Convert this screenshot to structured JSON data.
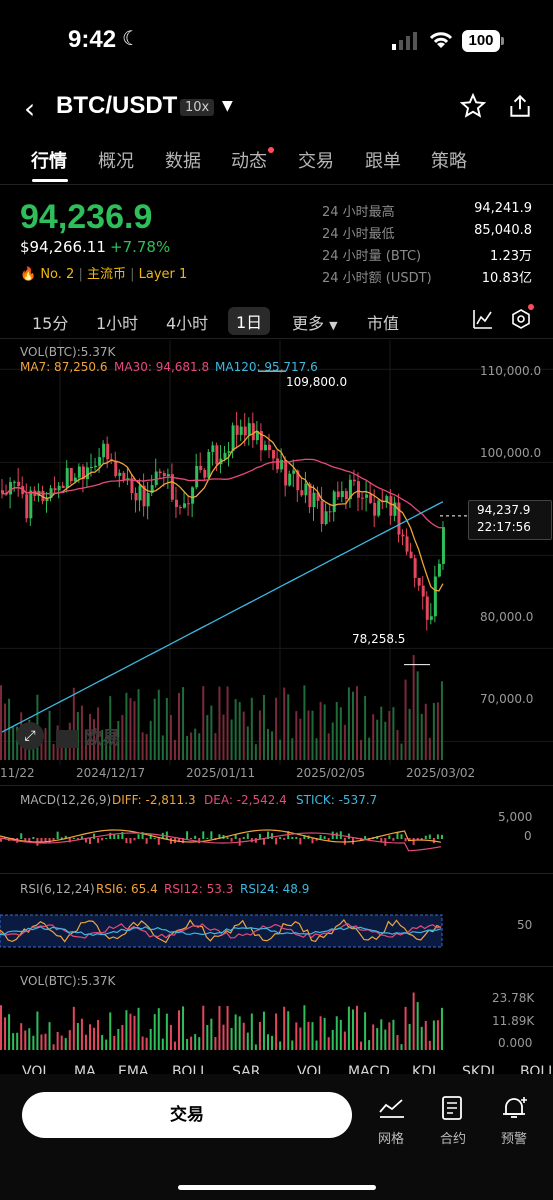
{
  "status": {
    "time": "9:42",
    "battery": "100"
  },
  "header": {
    "pair": "BTC/USDT",
    "leverage": "10x"
  },
  "tabs": [
    "行情",
    "概况",
    "数据",
    "动态",
    "交易",
    "跟单",
    "策略"
  ],
  "ticker": {
    "price": "94,236.9",
    "usd_price": "$94,266.11",
    "change": "+7.78%",
    "rank": "No. 2",
    "tag1": "主流币",
    "tag2": "Layer 1",
    "stats": [
      {
        "label": "24 小时最高",
        "value": "94,241.9"
      },
      {
        "label": "24 小时最低",
        "value": "85,040.8"
      },
      {
        "label": "24 小时量 (BTC)",
        "value": "1.23万"
      },
      {
        "label": "24 小时额 (USDT)",
        "value": "10.83亿"
      }
    ]
  },
  "timeframes": [
    "15分",
    "1小时",
    "4小时",
    "1日",
    "更多",
    "市值"
  ],
  "selected_timeframe": "1日",
  "main_chart": {
    "vol_label": "VOL(BTC):5.37K",
    "ma7": "MA7: 87,250.6",
    "ma30": "MA30: 94,681.8",
    "ma120": "MA120: 95,717.6",
    "y_ticks": [
      "110,000.0",
      "100,000.0",
      "80,000.0",
      "70,000.0"
    ],
    "high_label": "109,800.0",
    "low_label": "78,258.5",
    "current_price": "94,237.9",
    "countdown": "22:17:56",
    "x_labels": [
      "11/22",
      "2024/12/17",
      "2025/01/11",
      "2025/02/05",
      "2025/03/02"
    ],
    "watermark": "欧易"
  },
  "macd": {
    "title": "MACD(12,26,9)",
    "diff": "DIFF: -2,811.3",
    "dea": "DEA: -2,542.4",
    "stick": "STICK: -537.7",
    "ticks": [
      "5,000",
      "0"
    ]
  },
  "rsi": {
    "title": "RSI(6,12,24)",
    "rsi6": "RSI6: 65.4",
    "rsi12": "RSI12: 53.3",
    "rsi24": "RSI24: 48.9",
    "tick": "50"
  },
  "vol": {
    "title": "VOL(BTC):5.37K",
    "ticks": [
      "23.78K",
      "11.89K",
      "0.000"
    ]
  },
  "indicator_tabs": [
    "VOL",
    "MA",
    "EMA",
    "BOLL",
    "SAR",
    "VOL",
    "MACD",
    "KDJ",
    "SKDJ",
    "BOLL"
  ],
  "bottom": {
    "trade": "交易",
    "grid": "网格",
    "contract": "合约",
    "alert": "预警"
  },
  "colors": {
    "up": "#2fbf5a",
    "down": "#e2475e",
    "ma7": "#f0a43a",
    "ma30": "#e44a7a",
    "ma120": "#3db8e0"
  }
}
